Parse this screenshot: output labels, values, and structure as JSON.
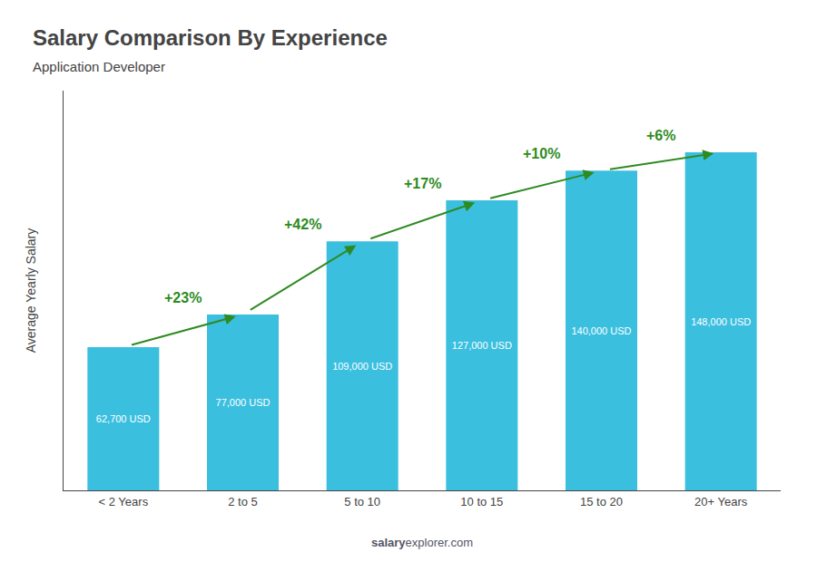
{
  "chart_data": {
    "type": "bar",
    "title": "Salary Comparison By Experience",
    "subtitle": "Application Developer",
    "ylabel": "Average Yearly Salary",
    "categories": [
      "< 2 Years",
      "2 to 5",
      "5 to 10",
      "10 to 15",
      "15 to 20",
      "20+ Years"
    ],
    "values": [
      62700,
      77000,
      109000,
      127000,
      140000,
      148000
    ],
    "value_labels": [
      "62,700 USD",
      "77,000 USD",
      "109,000 USD",
      "127,000 USD",
      "140,000 USD",
      "148,000 USD"
    ],
    "data_labels": true,
    "annotations": [
      "+23%",
      "+42%",
      "+17%",
      "+10%",
      "+6%"
    ],
    "watermark": [
      "salary",
      "explorer",
      ".com"
    ],
    "color": "#3bbfdf",
    "ylim": [
      0,
      175000
    ],
    "grid": false,
    "tick_labels": "x"
  }
}
